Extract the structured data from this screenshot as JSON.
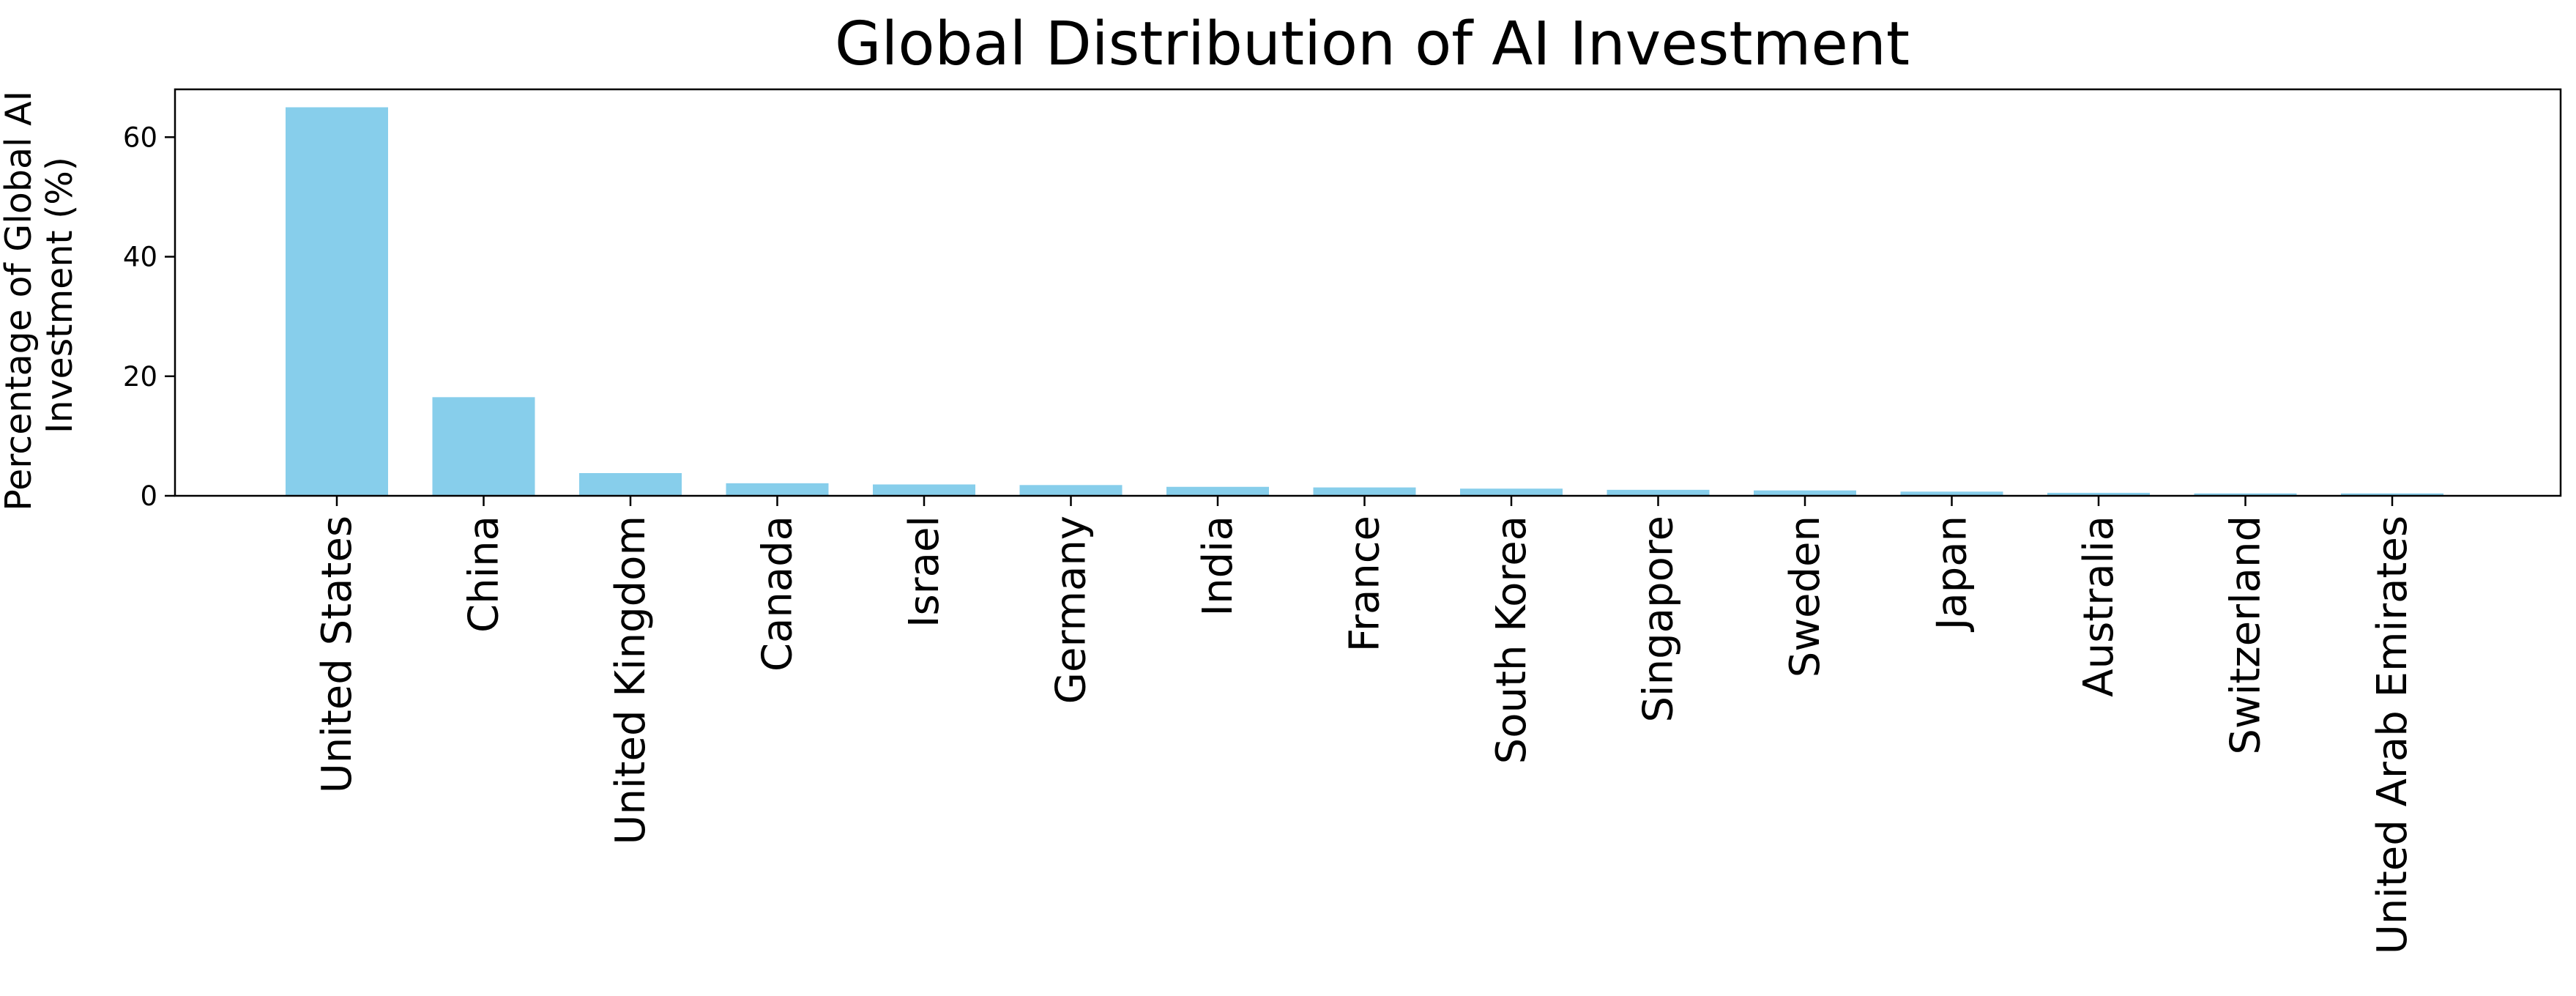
{
  "chart_data": {
    "type": "bar",
    "title": "Global Distribution of AI Investment",
    "xlabel": "",
    "ylabel_lines": [
      "Percentage of Global AI",
      "Investment (%)"
    ],
    "categories": [
      "United States",
      "China",
      "United Kingdom",
      "Canada",
      "Israel",
      "Germany",
      "India",
      "France",
      "South Korea",
      "Singapore",
      "Sweden",
      "Japan",
      "Australia",
      "Switzerland",
      "United Arab Emirates"
    ],
    "values": [
      65.0,
      16.5,
      3.8,
      2.1,
      1.9,
      1.8,
      1.5,
      1.4,
      1.2,
      1.0,
      0.9,
      0.7,
      0.5,
      0.4,
      0.4
    ],
    "ylim": [
      0,
      68
    ],
    "yticks": [
      0,
      20,
      40,
      60
    ],
    "grid": false,
    "bar_color": "#87ceeb"
  }
}
